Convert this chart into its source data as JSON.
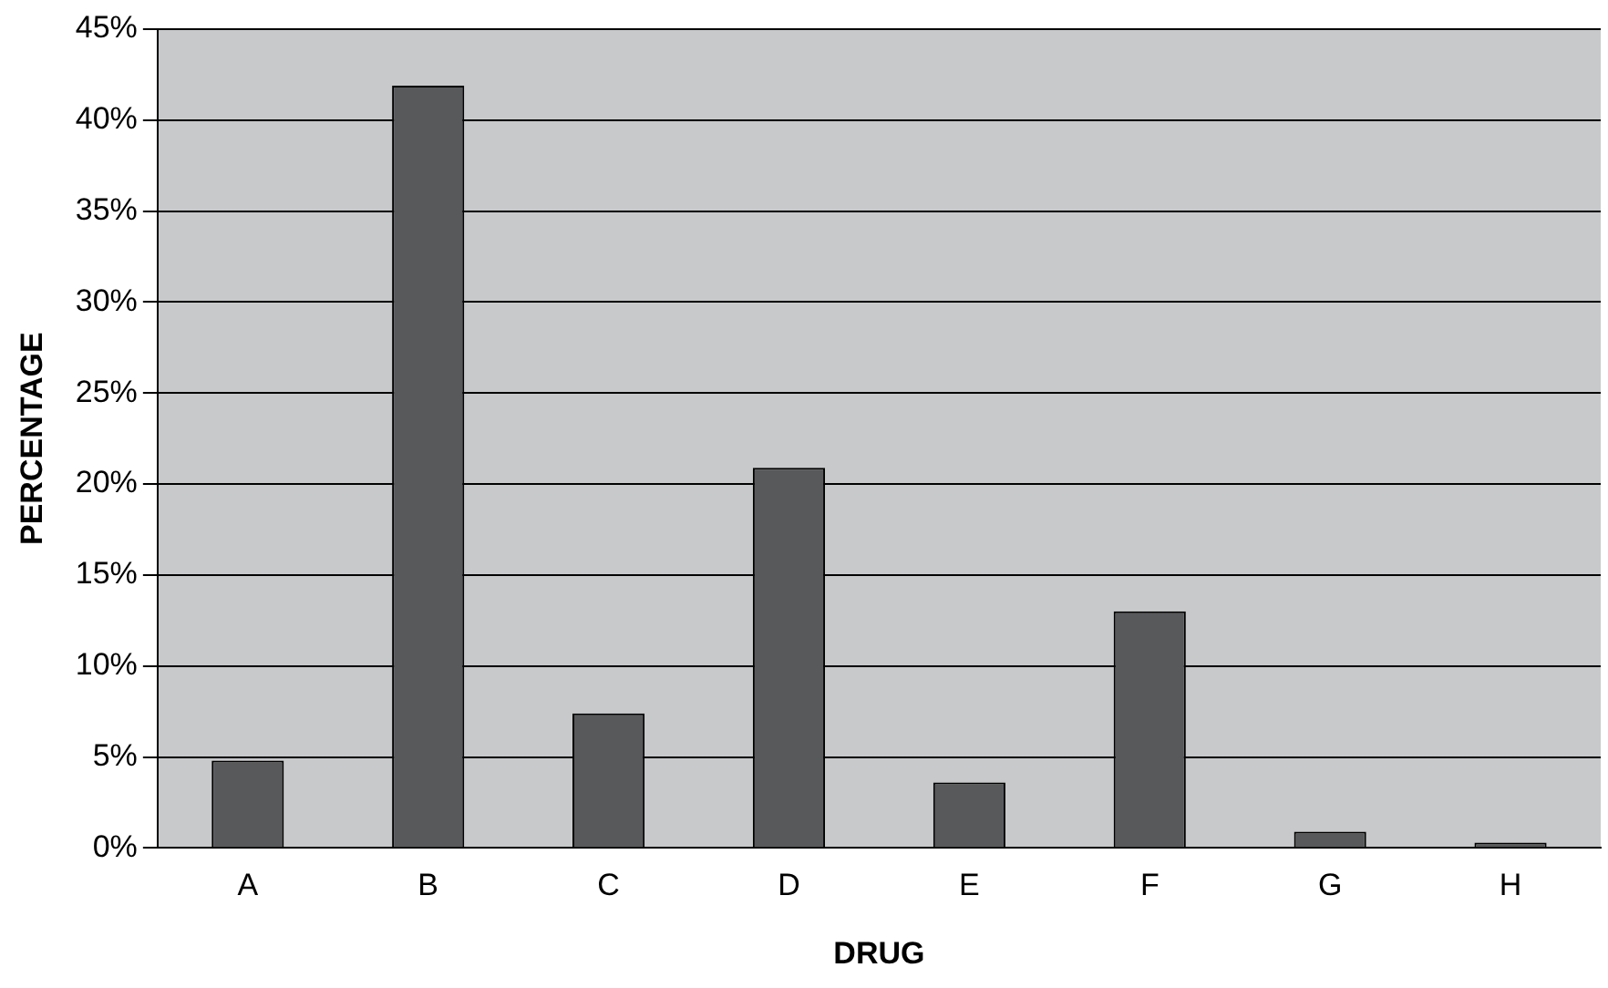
{
  "chart_data": {
    "type": "bar",
    "xlabel": "DRUG",
    "ylabel": "PERCENTAGE",
    "categories": [
      "A",
      "B",
      "C",
      "D",
      "E",
      "F",
      "G",
      "H"
    ],
    "values": [
      4.8,
      41.9,
      7.4,
      20.9,
      3.6,
      13.0,
      0.9,
      0.3
    ],
    "color": "#58595b",
    "ylim": [
      0,
      45
    ],
    "yticks": [
      {
        "value": 0,
        "label": "0%"
      },
      {
        "value": 5,
        "label": "5%"
      },
      {
        "value": 10,
        "label": "10%"
      },
      {
        "value": 15,
        "label": "15%"
      },
      {
        "value": 20,
        "label": "20%"
      },
      {
        "value": 25,
        "label": "25%"
      },
      {
        "value": 30,
        "label": "30%"
      },
      {
        "value": 35,
        "label": "35%"
      },
      {
        "value": 40,
        "label": "40%"
      },
      {
        "value": 45,
        "label": "45%"
      }
    ],
    "grid": "y",
    "legend": false
  }
}
